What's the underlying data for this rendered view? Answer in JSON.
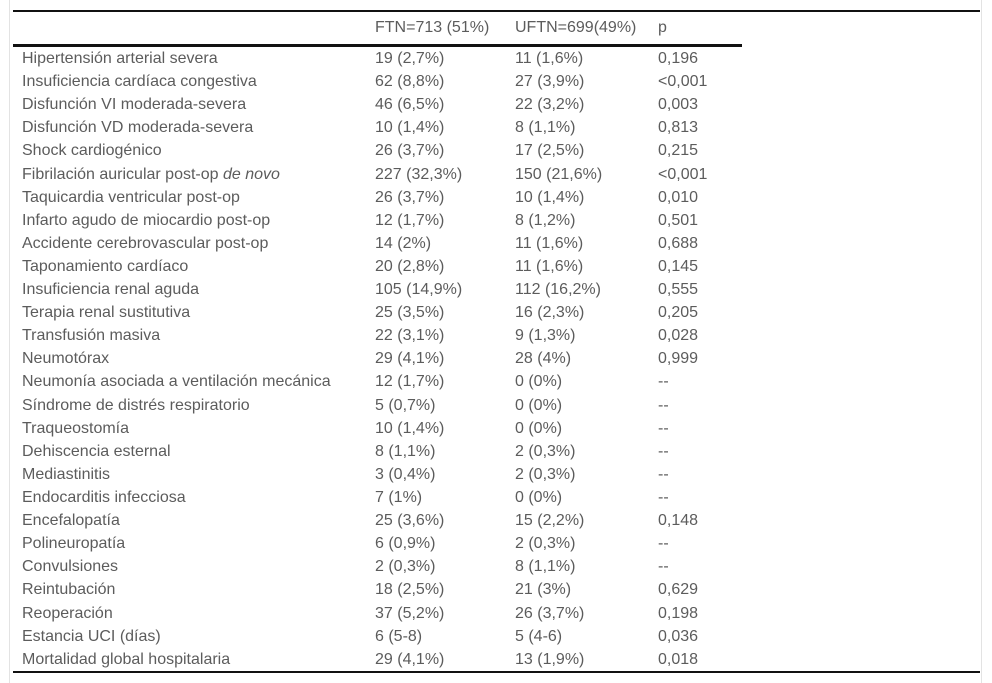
{
  "colors": {
    "text": "#5c5c5c",
    "rule": "#111111",
    "page_edge": "#e3e3e3"
  },
  "table": {
    "columns": [
      {
        "label": ""
      },
      {
        "label": "FTN=713 (51%)"
      },
      {
        "label": "UFTN=699(49%)"
      },
      {
        "label": "p"
      }
    ],
    "rows": [
      {
        "label": "Hipertensión arterial severa",
        "label_italic": "",
        "ftn": "19 (2,7%)",
        "uftn": "11 (1,6%)",
        "p": "0,196"
      },
      {
        "label": "Insuficiencia cardíaca congestiva",
        "label_italic": "",
        "ftn": "62 (8,8%)",
        "uftn": "27 (3,9%)",
        "p": "<0,001"
      },
      {
        "label": "Disfunción VI moderada-severa",
        "label_italic": "",
        "ftn": "46 (6,5%)",
        "uftn": "22 (3,2%)",
        "p": "0,003"
      },
      {
        "label": "Disfunción VD moderada-severa",
        "label_italic": "",
        "ftn": "10 (1,4%)",
        "uftn": "8 (1,1%)",
        "p": "0,813"
      },
      {
        "label": "Shock cardiogénico",
        "label_italic": "",
        "ftn": "26 (3,7%)",
        "uftn": "17 (2,5%)",
        "p": "0,215"
      },
      {
        "label": "Fibrilación auricular post-op",
        "label_italic": "de novo",
        "ftn": "227 (32,3%)",
        "uftn": "150 (21,6%)",
        "p": "<0,001"
      },
      {
        "label": "Taquicardia ventricular post-op",
        "label_italic": "",
        "ftn": "26 (3,7%)",
        "uftn": "10 (1,4%)",
        "p": "0,010"
      },
      {
        "label": "Infarto agudo de miocardio post-op",
        "label_italic": "",
        "ftn": "12 (1,7%)",
        "uftn": "8 (1,2%)",
        "p": "0,501"
      },
      {
        "label": "Accidente cerebrovascular post-op",
        "label_italic": "",
        "ftn": "14 (2%)",
        "uftn": "11 (1,6%)",
        "p": "0,688"
      },
      {
        "label": "Taponamiento cardíaco",
        "label_italic": "",
        "ftn": "20 (2,8%)",
        "uftn": "11 (1,6%)",
        "p": "0,145"
      },
      {
        "label": "Insuficiencia renal aguda",
        "label_italic": "",
        "ftn": "105 (14,9%)",
        "uftn": "112 (16,2%)",
        "p": "0,555"
      },
      {
        "label": "Terapia renal sustitutiva",
        "label_italic": "",
        "ftn": "25 (3,5%)",
        "uftn": "16 (2,3%)",
        "p": "0,205"
      },
      {
        "label": "Transfusión masiva",
        "label_italic": "",
        "ftn": "22 (3,1%)",
        "uftn": "9 (1,3%)",
        "p": "0,028"
      },
      {
        "label": "Neumotórax",
        "label_italic": "",
        "ftn": "29 (4,1%)",
        "uftn": "28 (4%)",
        "p": "0,999"
      },
      {
        "label": "Neumonía asociada a ventilación mecánica",
        "label_italic": "",
        "ftn": "12 (1,7%)",
        "uftn": "0 (0%)",
        "p": "--"
      },
      {
        "label": "Síndrome de distrés respiratorio",
        "label_italic": "",
        "ftn": "5 (0,7%)",
        "uftn": "0 (0%)",
        "p": "--"
      },
      {
        "label": "Traqueostomía",
        "label_italic": "",
        "ftn": "10 (1,4%)",
        "uftn": "0 (0%)",
        "p": "--"
      },
      {
        "label": "Dehiscencia esternal",
        "label_italic": "",
        "ftn": "8 (1,1%)",
        "uftn": "2 (0,3%)",
        "p": "--"
      },
      {
        "label": "Mediastinitis",
        "label_italic": "",
        "ftn": "3 (0,4%)",
        "uftn": "2 (0,3%)",
        "p": "--"
      },
      {
        "label": "Endocarditis infecciosa",
        "label_italic": "",
        "ftn": "7 (1%)",
        "uftn": "0 (0%)",
        "p": "--"
      },
      {
        "label": "Encefalopatía",
        "label_italic": "",
        "ftn": "25 (3,6%)",
        "uftn": "15 (2,2%)",
        "p": "0,148"
      },
      {
        "label": "Polineuropatía",
        "label_italic": "",
        "ftn": "6 (0,9%)",
        "uftn": "2 (0,3%)",
        "p": "--"
      },
      {
        "label": "Convulsiones",
        "label_italic": "",
        "ftn": "2 (0,3%)",
        "uftn": "8 (1,1%)",
        "p": "--"
      },
      {
        "label": "Reintubación",
        "label_italic": "",
        "ftn": "18 (2,5%)",
        "uftn": "21 (3%)",
        "p": "0,629"
      },
      {
        "label": "Reoperación",
        "label_italic": "",
        "ftn": "37 (5,2%)",
        "uftn": "26 (3,7%)",
        "p": "0,198"
      },
      {
        "label": "Estancia UCI (días)",
        "label_italic": "",
        "ftn": "6 (5-8)",
        "uftn": "5 (4-6)",
        "p": "0,036"
      },
      {
        "label": "Mortalidad global hospitalaria",
        "label_italic": "",
        "ftn": "29 (4,1%)",
        "uftn": "13 (1,9%)",
        "p": "0,018"
      }
    ]
  }
}
